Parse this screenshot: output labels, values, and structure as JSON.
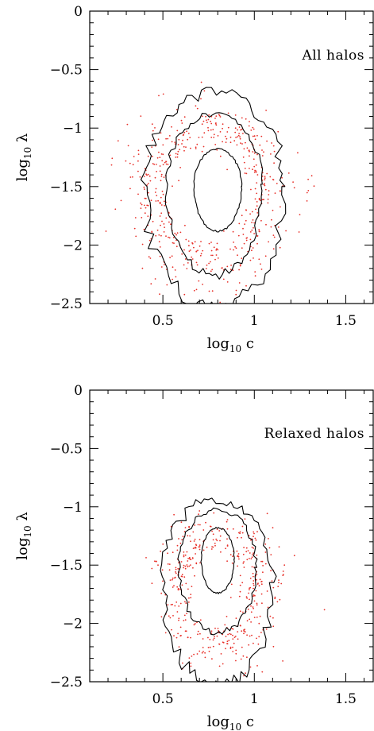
{
  "chart_data": [
    {
      "type": "scatter",
      "panel_label": "All halos",
      "xlabel_main": "log",
      "xlabel_sub": "10",
      "xlabel_var": " c",
      "ylabel_main": "log",
      "ylabel_sub": "10",
      "ylabel_var": " λ",
      "xlim": [
        0.1,
        1.65
      ],
      "ylim": [
        -2.5,
        0
      ],
      "xticks": [
        0.5,
        1,
        1.5
      ],
      "xtick_labels": [
        "0.5",
        "1",
        "1.5"
      ],
      "yticks": [
        0,
        -0.5,
        -1,
        -1.5,
        -2,
        -2.5
      ],
      "ytick_labels": [
        "0",
        "−0.5",
        "−1",
        "−1.5",
        "−2",
        "−2.5"
      ],
      "grid": false,
      "contour_levels": [
        {
          "center": [
            0.8,
            -1.5
          ],
          "rx": 0.13,
          "ry_top": 0.32,
          "ry_bottom": 0.38
        },
        {
          "center": [
            0.78,
            -1.48
          ],
          "rx": 0.26,
          "ry_top": 0.6,
          "ry_bottom": 0.78
        },
        {
          "center": [
            0.78,
            -1.5
          ],
          "rx": 0.38,
          "ry_top": 0.8,
          "ry_bottom": 1.05
        }
      ],
      "scatter": {
        "center": [
          0.75,
          -1.5
        ],
        "spread_x": 0.32,
        "spread_y": 0.55,
        "count": 520,
        "color": "#e8312a"
      }
    },
    {
      "type": "scatter",
      "panel_label": "Relaxed halos",
      "xlabel_main": "log",
      "xlabel_sub": "10",
      "xlabel_var": " c",
      "ylabel_main": "log",
      "ylabel_sub": "10",
      "ylabel_var": " λ",
      "xlim": [
        0.1,
        1.65
      ],
      "ylim": [
        -2.5,
        0
      ],
      "xticks": [
        0.5,
        1,
        1.5
      ],
      "xtick_labels": [
        "0.5",
        "1",
        "1.5"
      ],
      "yticks": [
        0,
        -0.5,
        -1,
        -1.5,
        -2,
        -2.5
      ],
      "ytick_labels": [
        "0",
        "−0.5",
        "−1",
        "−1.5",
        "−2",
        "−2.5"
      ],
      "grid": false,
      "contour_levels": [
        {
          "center": [
            0.8,
            -1.45
          ],
          "rx": 0.09,
          "ry_top": 0.27,
          "ry_bottom": 0.29
        },
        {
          "center": [
            0.8,
            -1.52
          ],
          "rx": 0.21,
          "ry_top": 0.5,
          "ry_bottom": 0.56
        },
        {
          "center": [
            0.8,
            -1.65
          ],
          "rx": 0.3,
          "ry_top": 0.72,
          "ry_bottom": 0.88
        }
      ],
      "scatter": {
        "center": [
          0.8,
          -1.65
        ],
        "spread_x": 0.24,
        "spread_y": 0.45,
        "count": 430,
        "color": "#e8312a"
      }
    }
  ]
}
